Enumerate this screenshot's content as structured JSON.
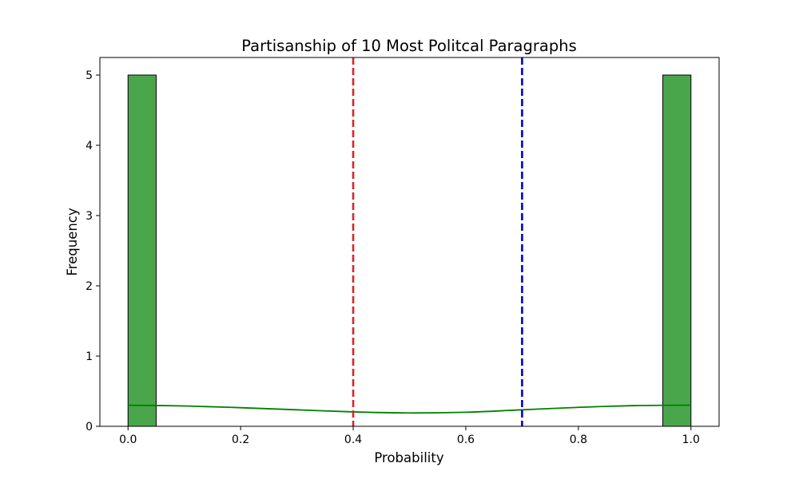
{
  "chart_data": {
    "type": "bar",
    "title": "Partisanship of 10 Most Politcal Paragraphs",
    "xlabel": "Probability",
    "ylabel": "Frequency",
    "xlim": [
      -0.05,
      1.05
    ],
    "ylim": [
      0,
      5.25
    ],
    "x_ticks": [
      {
        "value": 0.0,
        "label": "0.0"
      },
      {
        "value": 0.2,
        "label": "0.2"
      },
      {
        "value": 0.4,
        "label": "0.4"
      },
      {
        "value": 0.6,
        "label": "0.6"
      },
      {
        "value": 0.8,
        "label": "0.8"
      },
      {
        "value": 1.0,
        "label": "1.0"
      }
    ],
    "y_ticks": [
      {
        "value": 0,
        "label": "0"
      },
      {
        "value": 1,
        "label": "1"
      },
      {
        "value": 2,
        "label": "2"
      },
      {
        "value": 3,
        "label": "3"
      },
      {
        "value": 4,
        "label": "4"
      },
      {
        "value": 5,
        "label": "5"
      }
    ],
    "bins": [
      {
        "start": 0.0,
        "end": 0.05,
        "count": 5
      },
      {
        "start": 0.95,
        "end": 1.0,
        "count": 5
      }
    ],
    "kde": {
      "x": [
        0.0,
        0.1,
        0.2,
        0.3,
        0.4,
        0.5,
        0.6,
        0.7,
        0.8,
        0.9,
        1.0
      ],
      "y": [
        0.3,
        0.29,
        0.265,
        0.235,
        0.205,
        0.19,
        0.2,
        0.235,
        0.27,
        0.295,
        0.3
      ]
    },
    "reference_lines": [
      {
        "x": 0.4,
        "color": "#d62728"
      },
      {
        "x": 0.7,
        "color": "#0000cc"
      }
    ],
    "colors": {
      "bar_fill": "#4aa64a",
      "bar_edge": "#000000",
      "kde_line": "#008000"
    },
    "grid": false
  }
}
